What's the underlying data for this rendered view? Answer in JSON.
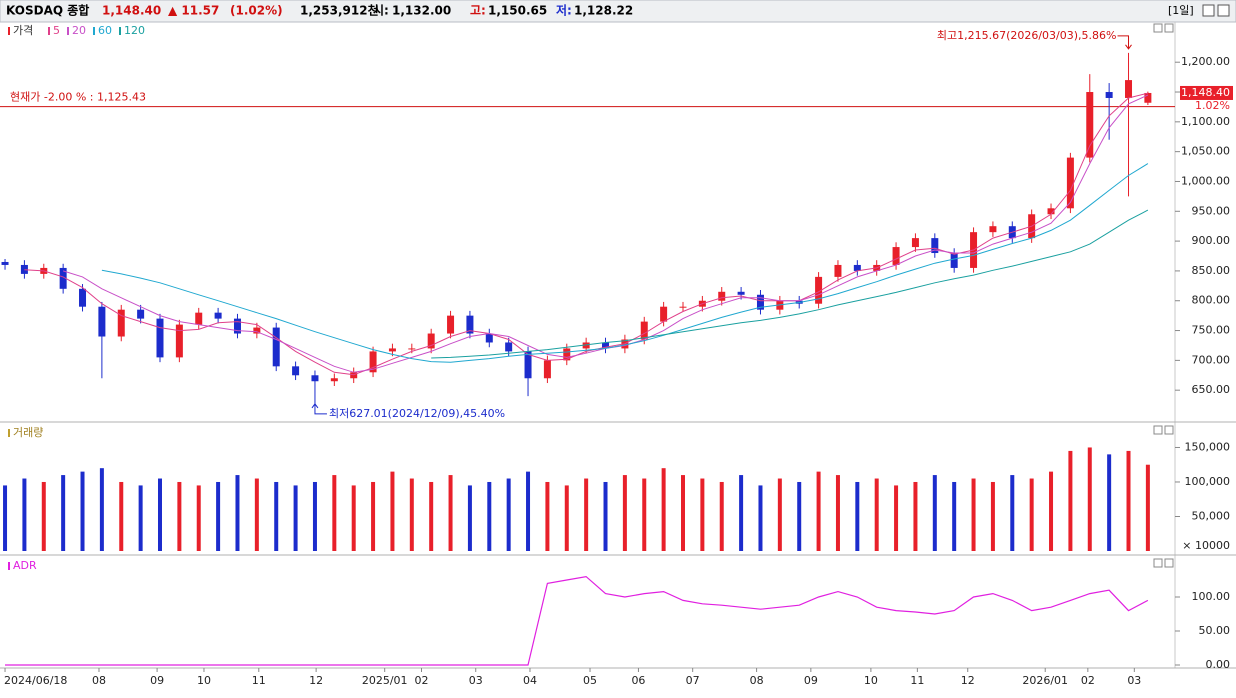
{
  "header": {
    "name": "KOSDAQ 종합",
    "price": "1,148.40",
    "change": "▲ 11.57",
    "change_pct": "(1.02%)",
    "volume": "1,253,912천",
    "open": [
      "시:",
      "1,132.00"
    ],
    "high": [
      "고:",
      "1,150.65"
    ],
    "low": [
      "저:",
      "1,128.22"
    ],
    "period": "[1일]"
  },
  "chart_data": [
    {
      "type": "candlestick",
      "legend_title": "가격",
      "candle_name": "가격",
      "up_color": "#e8202a",
      "down_color": "#1c2ccc",
      "ylim": [
        600,
        1254
      ],
      "yticks": [
        {
          "value": 650,
          "label": "650.00"
        },
        {
          "value": 700,
          "label": "700.00"
        },
        {
          "value": 750,
          "label": "750.00"
        },
        {
          "value": 800,
          "label": "800.00"
        },
        {
          "value": 850,
          "label": "850.00"
        },
        {
          "value": 900,
          "label": "900.00"
        },
        {
          "value": 950,
          "label": "950.00"
        },
        {
          "value": 1000,
          "label": "1,000.00"
        },
        {
          "value": 1050,
          "label": "1,050.00"
        },
        {
          "value": 1100,
          "label": "1,100.00"
        },
        {
          "value": 1150,
          "label": "1,150.00"
        },
        {
          "value": 1200,
          "label": "1,200.00"
        }
      ],
      "xlim": [
        -0.26,
        60.4
      ],
      "xticks": [
        {
          "value": 0,
          "label": "2024/06/18"
        },
        {
          "value": 4.85,
          "label": "08"
        },
        {
          "value": 7.85,
          "label": "09"
        },
        {
          "value": 10.27,
          "label": "10"
        },
        {
          "value": 13.1,
          "label": "11"
        },
        {
          "value": 16.06,
          "label": "12"
        },
        {
          "value": 19.6,
          "label": "2025/01"
        },
        {
          "value": 21.5,
          "label": "02"
        },
        {
          "value": 24.3,
          "label": "03"
        },
        {
          "value": 27.1,
          "label": "04"
        },
        {
          "value": 30.2,
          "label": "05"
        },
        {
          "value": 32.7,
          "label": "06"
        },
        {
          "value": 35.5,
          "label": "07"
        },
        {
          "value": 38.8,
          "label": "08"
        },
        {
          "value": 41.6,
          "label": "09"
        },
        {
          "value": 44.7,
          "label": "10"
        },
        {
          "value": 47.1,
          "label": "11"
        },
        {
          "value": 49.7,
          "label": "12"
        },
        {
          "value": 53.7,
          "label": "2026/01"
        },
        {
          "value": 55.9,
          "label": "02"
        },
        {
          "value": 58.3,
          "label": "03"
        }
      ],
      "open": [
        865,
        860,
        845,
        855,
        820,
        790,
        740,
        785,
        770,
        705,
        760,
        780,
        770,
        745,
        755,
        690,
        675,
        665,
        670,
        680,
        715,
        720,
        720,
        745,
        775,
        745,
        730,
        715,
        670,
        700,
        720,
        730,
        720,
        735,
        765,
        790,
        790,
        800,
        815,
        810,
        785,
        800,
        795,
        840,
        860,
        850,
        860,
        890,
        905,
        880,
        855,
        915,
        925,
        905,
        945,
        955,
        1040,
        1150,
        1140,
        1132
      ],
      "high": [
        870,
        868,
        862,
        862,
        828,
        798,
        793,
        793,
        778,
        768,
        788,
        788,
        778,
        763,
        763,
        698,
        683,
        678,
        688,
        723,
        728,
        728,
        753,
        783,
        783,
        753,
        738,
        723,
        708,
        728,
        738,
        738,
        743,
        773,
        798,
        798,
        808,
        823,
        823,
        818,
        808,
        808,
        848,
        868,
        868,
        868,
        898,
        913,
        913,
        888,
        923,
        933,
        933,
        953,
        963,
        1048,
        1180,
        1165,
        1215.67,
        1150.65
      ],
      "low": [
        852,
        837,
        837,
        812,
        782,
        670,
        732,
        762,
        697,
        697,
        752,
        762,
        737,
        737,
        682,
        667,
        627.01,
        657,
        662,
        672,
        707,
        712,
        712,
        737,
        737,
        722,
        707,
        640,
        662,
        692,
        712,
        712,
        712,
        727,
        757,
        782,
        782,
        792,
        802,
        777,
        777,
        787,
        787,
        832,
        842,
        842,
        852,
        882,
        872,
        847,
        847,
        907,
        897,
        897,
        937,
        947,
        1032,
        1070,
        975,
        1128.22
      ],
      "close": [
        860,
        845,
        855,
        820,
        790,
        740,
        785,
        770,
        705,
        760,
        780,
        770,
        745,
        755,
        690,
        675,
        665,
        670,
        680,
        715,
        720,
        720,
        745,
        775,
        745,
        730,
        715,
        670,
        700,
        720,
        730,
        720,
        735,
        765,
        790,
        790,
        800,
        815,
        810,
        785,
        800,
        795,
        840,
        860,
        850,
        860,
        890,
        905,
        880,
        855,
        915,
        925,
        905,
        945,
        955,
        1040,
        1150,
        1140,
        1170,
        1148.4
      ],
      "series": [
        {
          "name": "5",
          "color": "#e0408a",
          "values": [
            null,
            852,
            850,
            840,
            822,
            795,
            775,
            765,
            755,
            750,
            752,
            763,
            765,
            760,
            738,
            715,
            697,
            680,
            676,
            688,
            702,
            715,
            725,
            740,
            750,
            745,
            735,
            710,
            700,
            702,
            715,
            722,
            728,
            745,
            765,
            782,
            795,
            805,
            808,
            800,
            800,
            800,
            815,
            835,
            850,
            855,
            870,
            885,
            888,
            878,
            885,
            905,
            915,
            925,
            945,
            985,
            1060,
            1110,
            1140,
            1148
          ]
        },
        {
          "name": "20",
          "color": "#c850c8",
          "values": [
            null,
            null,
            null,
            850,
            840,
            820,
            805,
            790,
            775,
            765,
            760,
            755,
            750,
            748,
            735,
            720,
            705,
            690,
            680,
            685,
            695,
            705,
            715,
            728,
            740,
            745,
            740,
            725,
            710,
            705,
            712,
            720,
            725,
            735,
            750,
            770,
            785,
            795,
            805,
            805,
            800,
            800,
            810,
            825,
            840,
            850,
            860,
            875,
            885,
            880,
            880,
            895,
            905,
            915,
            930,
            965,
            1030,
            1090,
            1130,
            1145
          ]
        },
        {
          "name": "60",
          "color": "#20a8d0",
          "values": [
            null,
            null,
            null,
            null,
            null,
            851,
            845,
            838,
            830,
            820,
            810,
            800,
            790,
            780,
            770,
            759,
            748,
            738,
            728,
            718,
            710,
            703,
            698,
            697,
            700,
            703,
            707,
            710,
            712,
            714,
            717,
            720,
            726,
            733,
            742,
            752,
            762,
            772,
            781,
            789,
            793,
            797,
            803,
            812,
            822,
            832,
            843,
            853,
            863,
            870,
            876,
            886,
            896,
            905,
            918,
            935,
            960,
            985,
            1010,
            1030
          ]
        },
        {
          "name": "120",
          "color": "#1aa0a0",
          "values": [
            null,
            null,
            null,
            null,
            null,
            null,
            null,
            null,
            null,
            null,
            null,
            null,
            null,
            null,
            null,
            null,
            null,
            null,
            null,
            null,
            null,
            null,
            704,
            705,
            707,
            709,
            712,
            715,
            718,
            722,
            726,
            730,
            733,
            738,
            743,
            748,
            753,
            758,
            763,
            767,
            772,
            778,
            785,
            793,
            800,
            807,
            814,
            822,
            830,
            837,
            843,
            851,
            858,
            866,
            874,
            882,
            895,
            915,
            935,
            952
          ]
        }
      ],
      "reference_line": {
        "value": 1125.43,
        "label": "현재가 -2.00 % : 1,125.43",
        "color": "#d01010"
      },
      "last_price_label": "1,148.40",
      "last_change_label": "1.02%",
      "annotations": [
        {
          "text": "최고1,215.67(2026/03/03),5.86%",
          "index": 58,
          "value": 1215.67
        },
        {
          "text": "최저627.01(2024/12/09),45.40%",
          "index": 16,
          "value": 627.01
        }
      ]
    },
    {
      "type": "bar",
      "title": "거래량",
      "ylim": [
        0,
        184000
      ],
      "yticks": [
        {
          "value": 50000,
          "label": "50,000"
        },
        {
          "value": 100000,
          "label": "100,000"
        },
        {
          "value": 150000,
          "label": "150,000"
        }
      ],
      "unit_label": "× 10000",
      "values": [
        95000,
        105000,
        100000,
        110000,
        115000,
        120000,
        100000,
        95000,
        105000,
        100000,
        95000,
        100000,
        110000,
        105000,
        100000,
        95000,
        100000,
        110000,
        95000,
        100000,
        115000,
        105000,
        100000,
        110000,
        95000,
        100000,
        105000,
        115000,
        100000,
        95000,
        105000,
        100000,
        110000,
        105000,
        120000,
        110000,
        105000,
        100000,
        110000,
        95000,
        105000,
        100000,
        115000,
        110000,
        100000,
        105000,
        95000,
        100000,
        110000,
        100000,
        105000,
        100000,
        110000,
        105000,
        115000,
        145000,
        150000,
        140000,
        145000,
        125000
      ]
    },
    {
      "type": "line",
      "title": "ADR",
      "color": "#e020e0",
      "ylim": [
        -4.4,
        158.8
      ],
      "yticks": [
        {
          "value": 0,
          "label": "0.00"
        },
        {
          "value": 50,
          "label": "50.00"
        },
        {
          "value": 100,
          "label": "100.00"
        }
      ],
      "values": [
        0,
        0,
        0,
        0,
        0,
        0,
        0,
        0,
        0,
        0,
        0,
        0,
        0,
        0,
        0,
        0,
        0,
        0,
        0,
        0,
        0,
        0,
        0,
        0,
        0,
        0,
        0,
        0,
        120,
        125,
        130,
        105,
        100,
        105,
        108,
        95,
        90,
        88,
        85,
        82,
        85,
        88,
        100,
        108,
        100,
        85,
        80,
        78,
        75,
        80,
        100,
        105,
        95,
        80,
        85,
        95,
        105,
        110,
        80,
        95
      ]
    }
  ]
}
